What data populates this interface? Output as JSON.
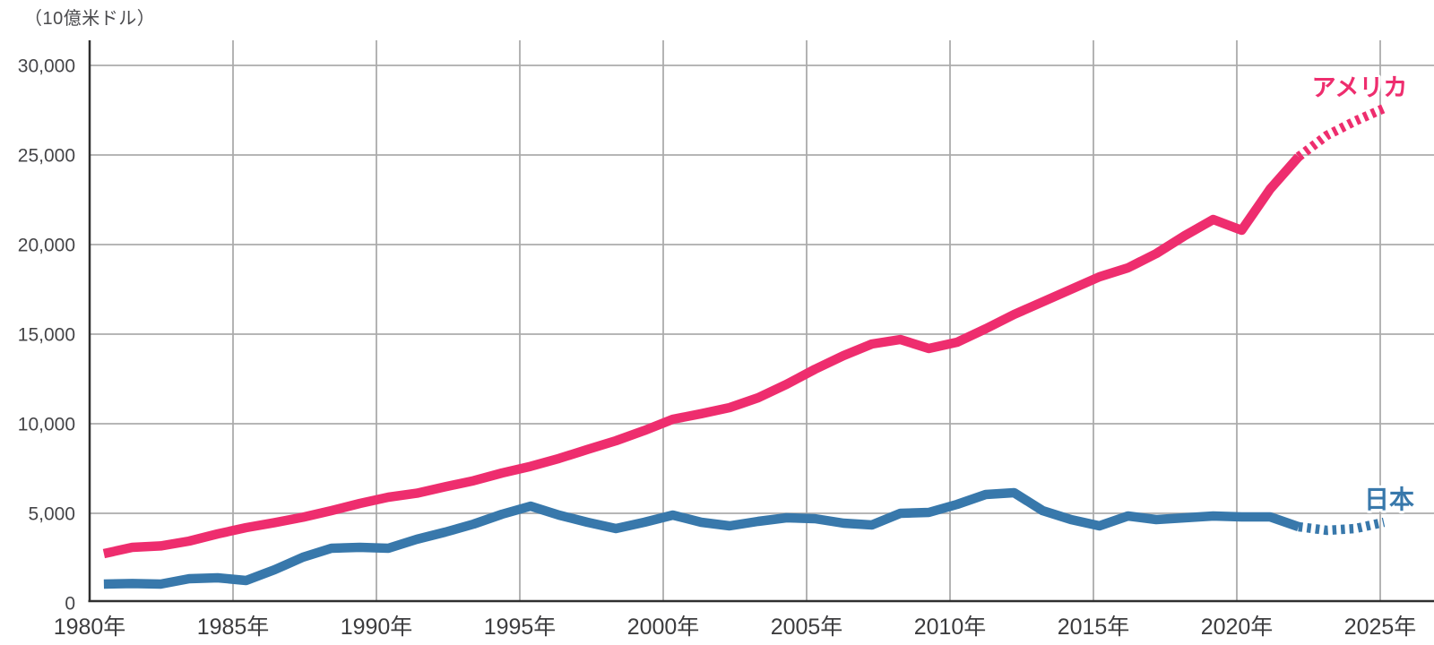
{
  "page": {
    "background": "#ffffff"
  },
  "chart_data": {
    "type": "line",
    "unit_label": "（10億米ドル）",
    "x_years": [
      1980,
      1981,
      1982,
      1983,
      1984,
      1985,
      1986,
      1987,
      1988,
      1989,
      1990,
      1991,
      1992,
      1993,
      1994,
      1995,
      1996,
      1997,
      1998,
      1999,
      2000,
      2001,
      2002,
      2003,
      2004,
      2005,
      2006,
      2007,
      2008,
      2009,
      2010,
      2011,
      2012,
      2013,
      2014,
      2015,
      2016,
      2017,
      2018,
      2019,
      2020,
      2021,
      2022,
      2023,
      2024,
      2025
    ],
    "x_tick_years": [
      1980,
      1985,
      1990,
      1995,
      2000,
      2005,
      2010,
      2015,
      2020,
      2025
    ],
    "x_tick_labels": [
      "1980年",
      "1985年",
      "1990年",
      "1995年",
      "2000年",
      "2005年",
      "2010年",
      "2015年",
      "2020年",
      "2025年"
    ],
    "y_ticks": [
      {
        "value": 30000,
        "label": "30,000"
      },
      {
        "value": 25000,
        "label": "25,000"
      },
      {
        "value": 20000,
        "label": "20,000"
      },
      {
        "value": 15000,
        "label": "15,000"
      },
      {
        "value": 10000,
        "label": "10,000"
      },
      {
        "value": 5000,
        "label": "5,000"
      },
      {
        "value": 0,
        "label": "0"
      }
    ],
    "ylim": [
      0,
      31400
    ],
    "grid": true,
    "solid_through_year": 2022,
    "projection_style": "dashed",
    "colors": {
      "grid": "#ababab",
      "axis": "#2f2f2f",
      "background": "#ffffff"
    },
    "series": [
      {
        "key": "usa",
        "name": "アメリカ",
        "color": "#ee2d6e",
        "values": [
          2750,
          3100,
          3180,
          3450,
          3850,
          4200,
          4480,
          4780,
          5150,
          5550,
          5900,
          6120,
          6480,
          6820,
          7250,
          7620,
          8060,
          8560,
          9050,
          9620,
          10250,
          10560,
          10900,
          11450,
          12200,
          13040,
          13800,
          14450,
          14700,
          14200,
          14550,
          15300,
          16100,
          16800,
          17500,
          18200,
          18700,
          19500,
          20500,
          21400,
          20800,
          23100,
          24900,
          26100,
          26900,
          27600
        ]
      },
      {
        "key": "japan",
        "name": "日本",
        "color": "#3878ab",
        "values": [
          1050,
          1080,
          1050,
          1350,
          1400,
          1250,
          1850,
          2550,
          3050,
          3100,
          3050,
          3550,
          3950,
          4400,
          4950,
          5400,
          4900,
          4500,
          4150,
          4500,
          4900,
          4500,
          4300,
          4550,
          4750,
          4700,
          4450,
          4350,
          5000,
          5050,
          5500,
          6050,
          6150,
          5150,
          4650,
          4300,
          4850,
          4650,
          4750,
          4850,
          4800,
          4800,
          4250,
          4050,
          4150,
          4500
        ]
      }
    ]
  }
}
